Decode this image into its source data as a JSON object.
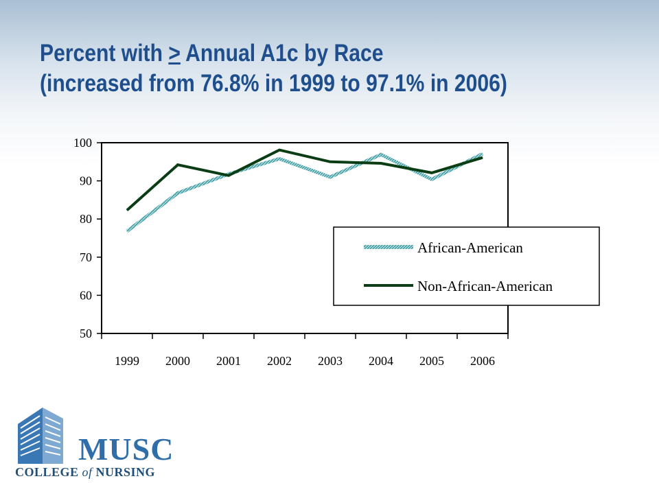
{
  "slide": {
    "title_line1_pre": "Percent with ",
    "title_line1_sym": ">",
    "title_line1_post": " Annual A1c by Race",
    "title_line2": "(increased from 76.8% in 1999 to 97.1% in 2006)"
  },
  "logo": {
    "name": "MUSC",
    "tagline_pre": "COLLEGE ",
    "tagline_of": "of",
    "tagline_post": " NURSING"
  },
  "chart_data": {
    "type": "line",
    "title": "",
    "xlabel": "",
    "ylabel": "",
    "categories": [
      "1999",
      "2000",
      "2001",
      "2002",
      "2003",
      "2004",
      "2005",
      "2006"
    ],
    "ylim": [
      50,
      100
    ],
    "yticks": [
      100,
      90,
      80,
      70,
      60,
      50
    ],
    "grid": false,
    "legend_position": "bottom-right",
    "series": [
      {
        "name": "African-American",
        "color": "#4aa3a8",
        "style": "hatched",
        "values": [
          76.8,
          86.8,
          91.8,
          95.8,
          91.0,
          96.9,
          90.4,
          97.1
        ]
      },
      {
        "name": "Non-African-American",
        "color": "#0b3d14",
        "style": "solid",
        "values": [
          82.3,
          94.2,
          91.4,
          98.1,
          95.0,
          94.6,
          92.1,
          96.1
        ]
      }
    ]
  }
}
